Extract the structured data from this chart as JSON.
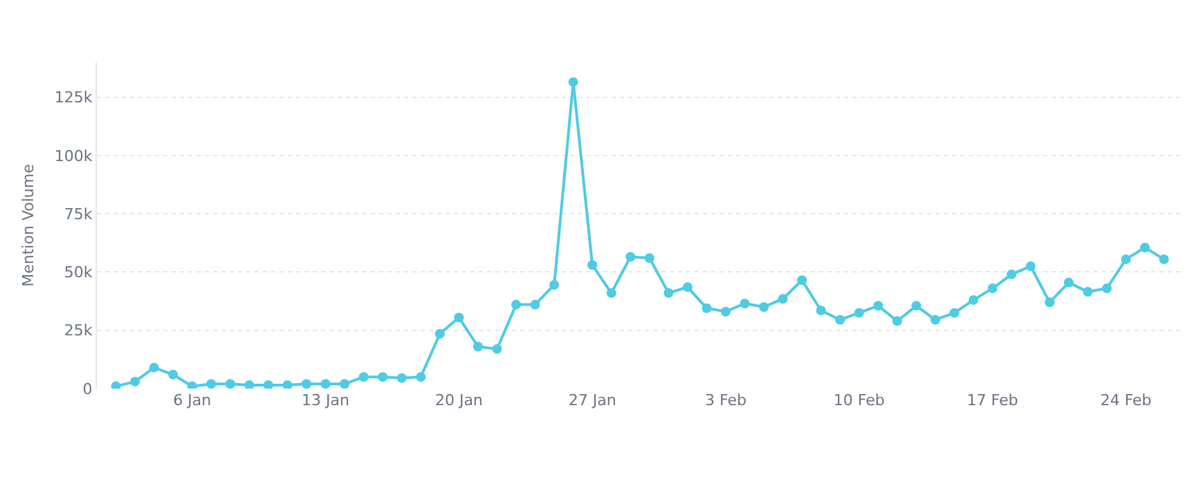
{
  "chart_data": {
    "type": "line",
    "ylabel": "Mention Volume",
    "x": [
      "--01-02",
      "--01-03",
      "--01-04",
      "--01-05",
      "--01-06",
      "--01-07",
      "--01-08",
      "--01-09",
      "--01-10",
      "--01-11",
      "--01-12",
      "--01-13",
      "--01-14",
      "--01-15",
      "--01-16",
      "--01-17",
      "--01-18",
      "--01-19",
      "--01-20",
      "--01-21",
      "--01-22",
      "--01-23",
      "--01-24",
      "--01-25",
      "--01-26",
      "--01-27",
      "--01-28",
      "--01-29",
      "--01-30",
      "--01-31",
      "--02-01",
      "--02-02",
      "--02-03",
      "--02-04",
      "--02-05",
      "--02-06",
      "--02-07",
      "--02-08",
      "--02-09",
      "--02-10",
      "--02-11",
      "--02-12",
      "--02-13",
      "--02-14",
      "--02-15",
      "--02-16",
      "--02-17",
      "--02-18",
      "--02-19",
      "--02-20",
      "--02-21",
      "--02-22",
      "--02-23",
      "--02-24",
      "--02-25",
      "--02-26"
    ],
    "series": [
      {
        "color": "#4fcbe3",
        "values": [
          1000,
          3000,
          9000,
          6000,
          1000,
          2000,
          2000,
          1500,
          1500,
          1500,
          2000,
          2000,
          2000,
          5000,
          5000,
          4500,
          5000,
          23500,
          30500,
          18000,
          17000,
          36000,
          36000,
          44500,
          131500,
          53000,
          41000,
          56500,
          56000,
          41000,
          43500,
          34500,
          33000,
          36500,
          35000,
          38500,
          46500,
          33500,
          29500,
          32500,
          35500,
          29000,
          35500,
          29500,
          32500,
          38000,
          43000,
          49000,
          52500,
          37000,
          45500,
          41500,
          43000,
          55500,
          60500,
          55500
        ]
      }
    ],
    "xlim": [
      "--01-01",
      "--02-27"
    ],
    "xticks": [
      {
        "value": "--01-06",
        "label": "6 Jan"
      },
      {
        "value": "--01-13",
        "label": "13 Jan"
      },
      {
        "value": "--01-20",
        "label": "20 Jan"
      },
      {
        "value": "--01-27",
        "label": "27 Jan"
      },
      {
        "value": "--02-03",
        "label": "3 Feb"
      },
      {
        "value": "--02-10",
        "label": "10 Feb"
      },
      {
        "value": "--02-17",
        "label": "17 Feb"
      },
      {
        "value": "--02-24",
        "label": "24 Feb"
      }
    ],
    "ylim": [
      0,
      140000
    ],
    "yticks": [
      0,
      {
        "value": 25000,
        "label": "25k"
      },
      {
        "value": 50000,
        "label": "50k"
      },
      {
        "value": 75000,
        "label": "75k"
      },
      {
        "value": 100000,
        "label": "100k"
      },
      {
        "value": 125000,
        "label": "125k"
      }
    ],
    "grid": "y",
    "legend": false,
    "marker": "circle",
    "line_style": "solid"
  }
}
